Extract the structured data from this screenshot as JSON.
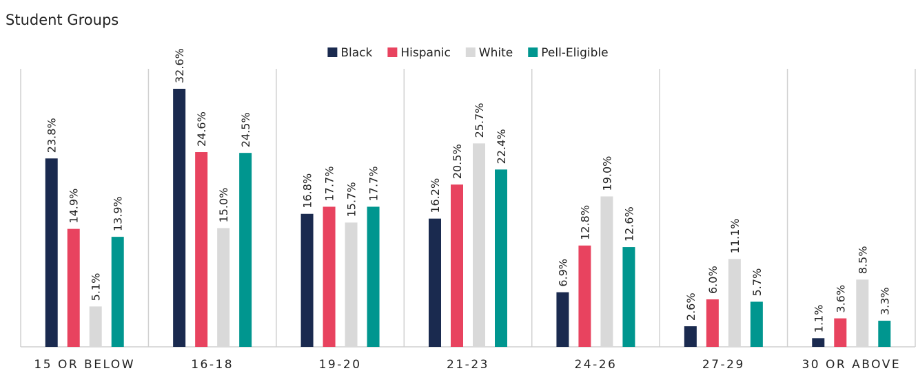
{
  "chart_data": {
    "type": "bar",
    "title": "Student Groups",
    "categories": [
      "15 OR BELOW",
      "16-18",
      "19-20",
      "21-23",
      "24-26",
      "27-29",
      "30 OR ABOVE"
    ],
    "legend": "top",
    "series": [
      {
        "name": "Black",
        "color": "#1a2a4f",
        "values": [
          23.8,
          32.6,
          16.8,
          16.2,
          6.9,
          2.6,
          1.1
        ],
        "value_labels": [
          "23.8%",
          "32.6%",
          "16.8%",
          "16.2%",
          "6.9%",
          "2.6%",
          "1.1%"
        ]
      },
      {
        "name": "Hispanic",
        "color": "#e8435f",
        "values": [
          14.9,
          24.6,
          17.7,
          20.5,
          12.8,
          6.0,
          3.6
        ],
        "value_labels": [
          "14.9%",
          "24.6%",
          "17.7%",
          "20.5%",
          "12.8%",
          "6.0%",
          "3.6%"
        ]
      },
      {
        "name": "White",
        "color": "#d9d9d9",
        "values": [
          5.1,
          15.0,
          15.7,
          25.7,
          19.0,
          11.1,
          8.5
        ],
        "value_labels": [
          "5.1%",
          "15.0%",
          "15.7%",
          "25.7%",
          "19.0%",
          "11.1%",
          "8.5%"
        ]
      },
      {
        "name": "Pell-Eligible",
        "color": "#00968f",
        "values": [
          13.9,
          24.5,
          17.7,
          22.4,
          12.6,
          5.7,
          3.3
        ],
        "value_labels": [
          "13.9%",
          "24.5%",
          "17.7%",
          "22.4%",
          "12.6%",
          "5.7%",
          "3.3%"
        ]
      }
    ]
  }
}
